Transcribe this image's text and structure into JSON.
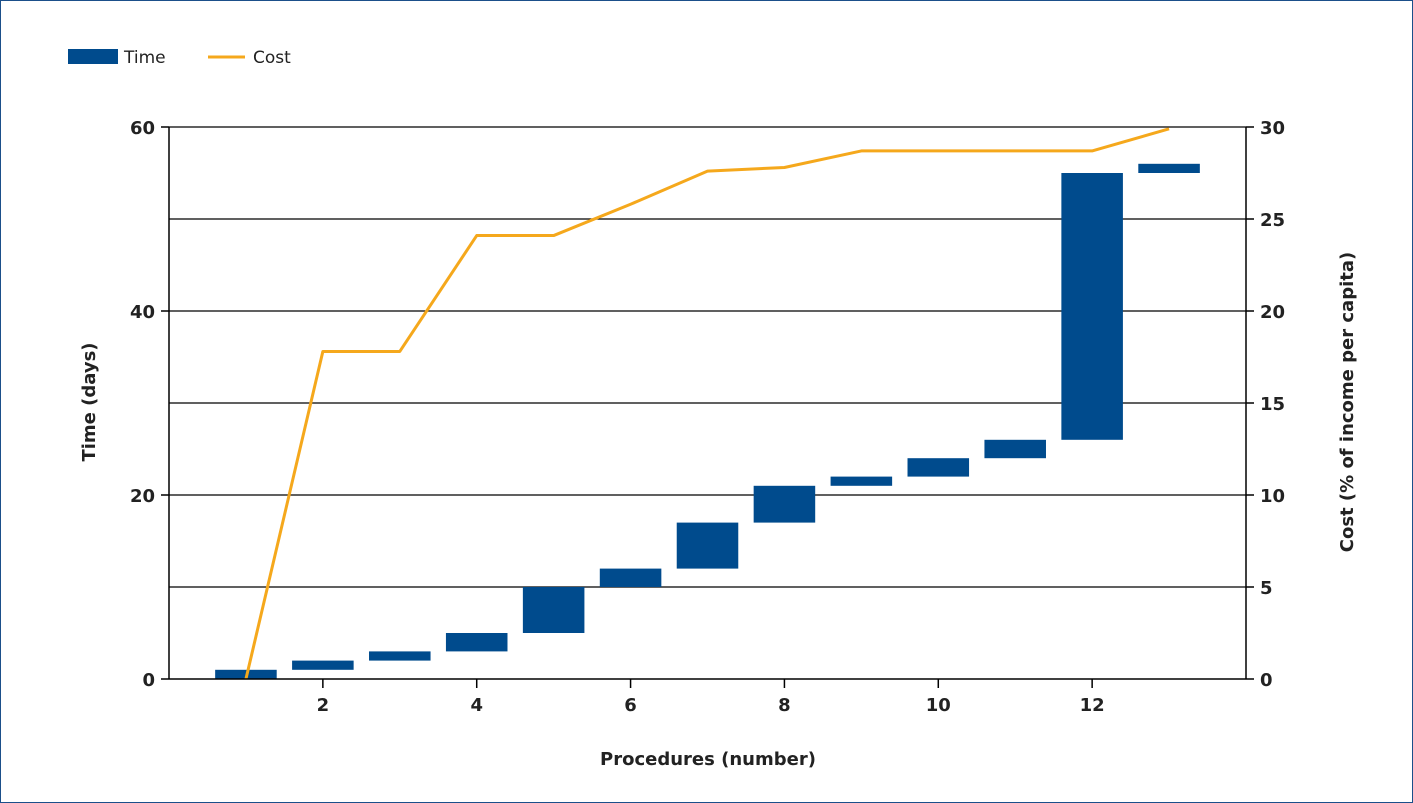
{
  "legend": {
    "time_label": "Time",
    "cost_label": "Cost"
  },
  "colors": {
    "time": "#004b8d",
    "cost": "#f5a81c",
    "grid": "#000000",
    "frame": "#1b4f8a"
  },
  "chart_data": {
    "type": "bar",
    "xlabel": "Procedures (number)",
    "ylabel_left": "Time (days)",
    "ylabel_right": "Cost (% of income per capita)",
    "xlim": [
      0,
      14
    ],
    "ylim_left": [
      0,
      60
    ],
    "ylim_right": [
      0,
      30
    ],
    "x_ticks": [
      2,
      4,
      6,
      8,
      10,
      12
    ],
    "y_left_ticks": [
      0,
      20,
      40,
      60
    ],
    "y_right_ticks": [
      0,
      5,
      10,
      15,
      20,
      25,
      30
    ],
    "grid": true,
    "legend_position": "top-left",
    "time_series": {
      "name": "Time",
      "procedures": [
        1,
        2,
        3,
        4,
        5,
        6,
        7,
        8,
        9,
        10,
        11,
        12,
        13
      ],
      "start_days": [
        0,
        1,
        2,
        3,
        5,
        10,
        12,
        17,
        21,
        22,
        24,
        26,
        55
      ],
      "end_days": [
        1,
        2,
        3,
        5,
        10,
        12,
        17,
        21,
        22,
        24,
        26,
        55,
        56
      ]
    },
    "cost_series": {
      "name": "Cost",
      "procedures": [
        1,
        2,
        3,
        4,
        5,
        6,
        7,
        8,
        9,
        10,
        11,
        12,
        13
      ],
      "values": [
        0,
        17.8,
        17.8,
        24.1,
        24.1,
        25.8,
        27.6,
        27.8,
        28.7,
        28.7,
        28.7,
        28.7,
        29.9
      ]
    }
  }
}
